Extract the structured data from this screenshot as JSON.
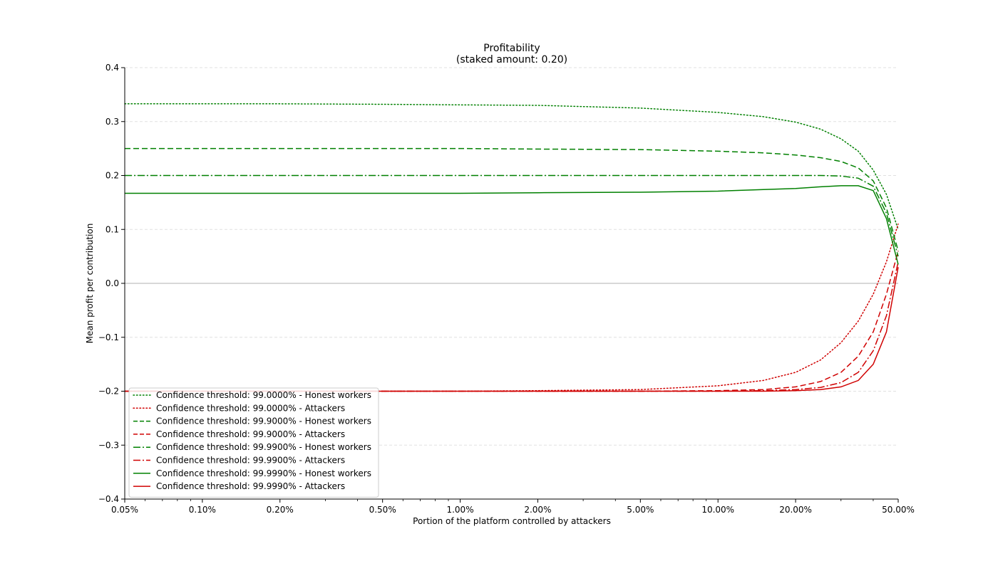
{
  "chart_data": {
    "type": "line",
    "title": "Profitability",
    "subtitle": "(staked amount: 0.20)",
    "xlabel": "Portion of the platform controlled by attackers",
    "ylabel": "Mean profit per contribution",
    "x_scale": "log",
    "xlim": [
      0.0005,
      0.5
    ],
    "ylim": [
      -0.4,
      0.4
    ],
    "x_ticks": [
      0.0005,
      0.001,
      0.002,
      0.005,
      0.01,
      0.02,
      0.05,
      0.1,
      0.2,
      0.5
    ],
    "x_tick_labels": [
      "0.05%",
      "0.10%",
      "0.20%",
      "0.50%",
      "1.00%",
      "2.00%",
      "5.00%",
      "10.00%",
      "20.00%",
      "50.00%"
    ],
    "y_ticks": [
      -0.4,
      -0.3,
      -0.2,
      -0.1,
      0.0,
      0.1,
      0.2,
      0.3,
      0.4
    ],
    "y_tick_labels": [
      "−0.4",
      "−0.3",
      "−0.2",
      "−0.1",
      "0.0",
      "0.1",
      "0.2",
      "0.3",
      "0.4"
    ],
    "grid": "horizontal-dashed",
    "legend_position": "lower-left",
    "series": [
      {
        "name": "Confidence threshold: 99.0000% - Honest workers",
        "color": "#008000",
        "style": "dotted",
        "x": [
          0.0005,
          0.001,
          0.002,
          0.005,
          0.01,
          0.02,
          0.05,
          0.1,
          0.15,
          0.2,
          0.25,
          0.3,
          0.35,
          0.4,
          0.45,
          0.5
        ],
        "y": [
          0.333,
          0.333,
          0.333,
          0.332,
          0.331,
          0.33,
          0.325,
          0.317,
          0.309,
          0.299,
          0.286,
          0.268,
          0.245,
          0.21,
          0.165,
          0.1
        ]
      },
      {
        "name": "Confidence threshold: 99.0000% - Attackers",
        "color": "#d00000",
        "style": "dotted",
        "x": [
          0.0005,
          0.001,
          0.002,
          0.005,
          0.01,
          0.02,
          0.05,
          0.1,
          0.15,
          0.2,
          0.25,
          0.3,
          0.35,
          0.4,
          0.45,
          0.5
        ],
        "y": [
          -0.2,
          -0.2,
          -0.2,
          -0.2,
          -0.2,
          -0.199,
          -0.197,
          -0.19,
          -0.18,
          -0.165,
          -0.142,
          -0.11,
          -0.07,
          -0.02,
          0.04,
          0.11
        ]
      },
      {
        "name": "Confidence threshold: 99.9000% - Honest workers",
        "color": "#008000",
        "style": "dashed",
        "x": [
          0.0005,
          0.001,
          0.002,
          0.005,
          0.01,
          0.02,
          0.05,
          0.1,
          0.15,
          0.2,
          0.25,
          0.3,
          0.35,
          0.4,
          0.45,
          0.5
        ],
        "y": [
          0.25,
          0.25,
          0.25,
          0.25,
          0.25,
          0.249,
          0.248,
          0.245,
          0.242,
          0.238,
          0.233,
          0.226,
          0.214,
          0.19,
          0.14,
          0.06
        ]
      },
      {
        "name": "Confidence threshold: 99.9000% - Attackers",
        "color": "#d00000",
        "style": "dashed",
        "x": [
          0.0005,
          0.001,
          0.002,
          0.005,
          0.01,
          0.02,
          0.05,
          0.1,
          0.15,
          0.2,
          0.25,
          0.3,
          0.35,
          0.4,
          0.45,
          0.5
        ],
        "y": [
          -0.2,
          -0.2,
          -0.2,
          -0.2,
          -0.2,
          -0.2,
          -0.2,
          -0.199,
          -0.197,
          -0.192,
          -0.182,
          -0.165,
          -0.135,
          -0.09,
          -0.02,
          0.06
        ]
      },
      {
        "name": "Confidence threshold: 99.9900% - Honest workers",
        "color": "#008000",
        "style": "dashdot",
        "x": [
          0.0005,
          0.001,
          0.002,
          0.005,
          0.01,
          0.02,
          0.05,
          0.1,
          0.15,
          0.2,
          0.25,
          0.3,
          0.35,
          0.4,
          0.45,
          0.5
        ],
        "y": [
          0.2,
          0.2,
          0.2,
          0.2,
          0.2,
          0.2,
          0.2,
          0.2,
          0.2,
          0.2,
          0.2,
          0.199,
          0.195,
          0.18,
          0.13,
          0.05
        ]
      },
      {
        "name": "Confidence threshold: 99.9900% - Attackers",
        "color": "#d00000",
        "style": "dashdot",
        "x": [
          0.0005,
          0.001,
          0.002,
          0.005,
          0.01,
          0.02,
          0.05,
          0.1,
          0.15,
          0.2,
          0.25,
          0.3,
          0.35,
          0.4,
          0.45,
          0.5
        ],
        "y": [
          -0.2,
          -0.2,
          -0.2,
          -0.2,
          -0.2,
          -0.2,
          -0.2,
          -0.2,
          -0.199,
          -0.197,
          -0.193,
          -0.184,
          -0.165,
          -0.125,
          -0.06,
          0.04
        ]
      },
      {
        "name": "Confidence threshold: 99.9990% - Honest workers",
        "color": "#008000",
        "style": "solid",
        "x": [
          0.0005,
          0.001,
          0.002,
          0.005,
          0.01,
          0.02,
          0.05,
          0.1,
          0.15,
          0.2,
          0.25,
          0.3,
          0.35,
          0.4,
          0.45,
          0.5
        ],
        "y": [
          0.167,
          0.167,
          0.167,
          0.167,
          0.167,
          0.168,
          0.169,
          0.171,
          0.174,
          0.176,
          0.179,
          0.181,
          0.181,
          0.172,
          0.12,
          0.035
        ]
      },
      {
        "name": "Confidence threshold: 99.9990% - Attackers",
        "color": "#d00000",
        "style": "solid",
        "x": [
          0.0005,
          0.001,
          0.002,
          0.005,
          0.01,
          0.02,
          0.05,
          0.1,
          0.15,
          0.2,
          0.25,
          0.3,
          0.35,
          0.4,
          0.45,
          0.5
        ],
        "y": [
          -0.2,
          -0.2,
          -0.2,
          -0.2,
          -0.2,
          -0.2,
          -0.2,
          -0.2,
          -0.2,
          -0.199,
          -0.197,
          -0.192,
          -0.18,
          -0.15,
          -0.09,
          0.03
        ]
      }
    ]
  }
}
